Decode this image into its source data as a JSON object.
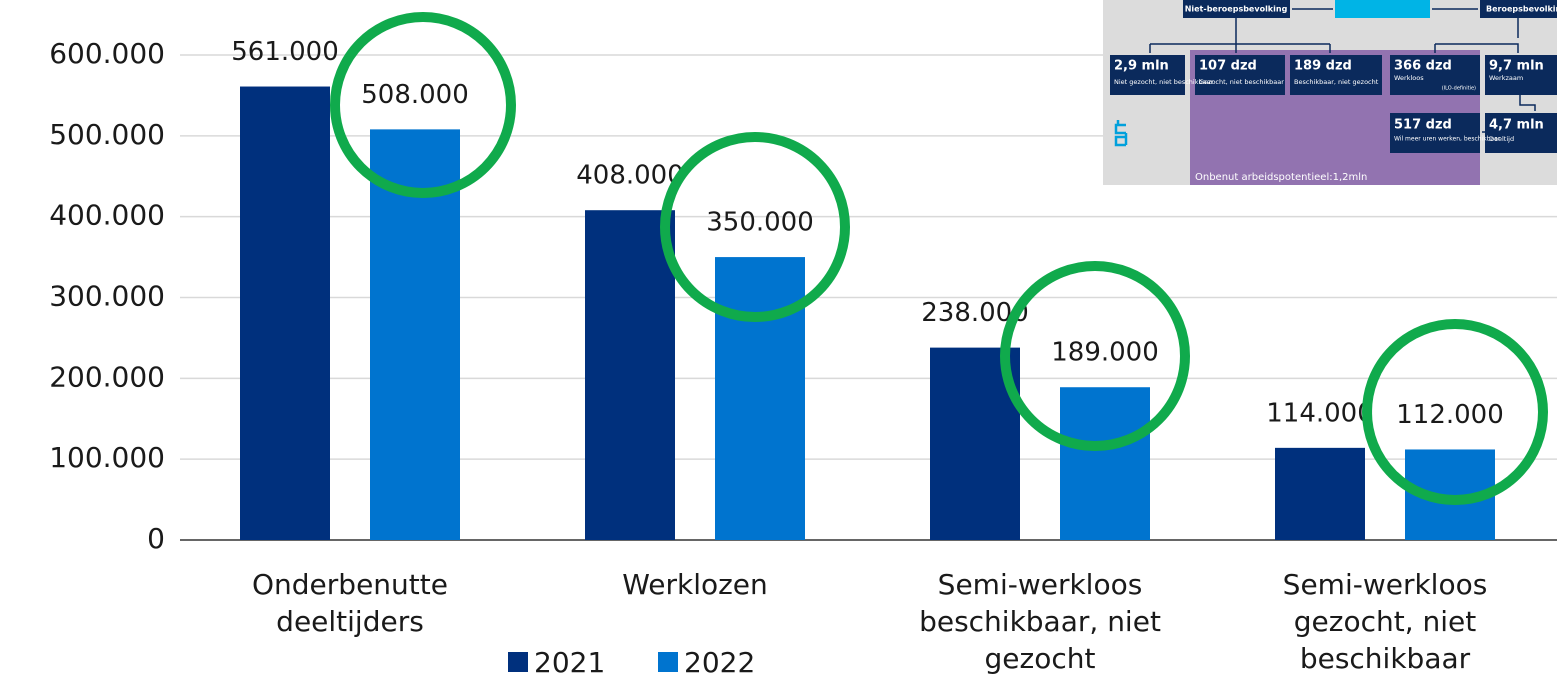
{
  "chart_data": {
    "type": "bar",
    "categories": [
      "Onderbenutte deeltijders",
      "Werklozen",
      "Semi-werkloos beschikbaar, niet gezocht",
      "Semi-werkloos gezocht, niet beschikbaar"
    ],
    "series": [
      {
        "name": "2021",
        "color": "#00307d",
        "values": [
          561000,
          408000,
          238000,
          114000
        ],
        "value_labels": [
          "561.000",
          "408.000",
          "238.000",
          "114.000"
        ]
      },
      {
        "name": "2022",
        "color": "#0074cf",
        "values": [
          508000,
          350000,
          189000,
          112000
        ],
        "value_labels": [
          "508.000",
          "350.000",
          "189.000",
          "112.000"
        ]
      }
    ],
    "ylim": [
      0,
      600000
    ],
    "yticks": [
      0,
      {
        "value": 100000,
        "label": "100.000"
      },
      {
        "value": 200000,
        "label": "200.000"
      },
      {
        "value": 300000,
        "label": "300.000"
      },
      {
        "value": 400000,
        "label": "400.000"
      },
      {
        "value": 500000,
        "label": "500.000"
      },
      {
        "value": 600000,
        "label": "600.000"
      }
    ],
    "grid": true,
    "legend": "bottom"
  },
  "inset": {
    "top_left": "Niet-beroepsbevolking",
    "top_right": "Beroepsbevolking",
    "boxes": [
      {
        "value": "2,9 mln",
        "text": "Niet gezocht, niet beschikbaar"
      },
      {
        "value": "107 dzd",
        "text": "Gezocht, niet beschikbaar"
      },
      {
        "value": "189 dzd",
        "text": "Beschikbaar, niet gezocht"
      },
      {
        "value": "366 dzd",
        "text": "Werkloos",
        "note": "(ILO-definitie)"
      },
      {
        "value": "9,7 mln",
        "text": "Werkzaam"
      },
      {
        "value": "517 dzd",
        "text": "Wil meer uren werken, beschikbaar"
      },
      {
        "value": "4,7 mln",
        "text": "Deeltijd"
      }
    ],
    "footer": "Onbenut arbeidspotentieel:1,2mln"
  }
}
